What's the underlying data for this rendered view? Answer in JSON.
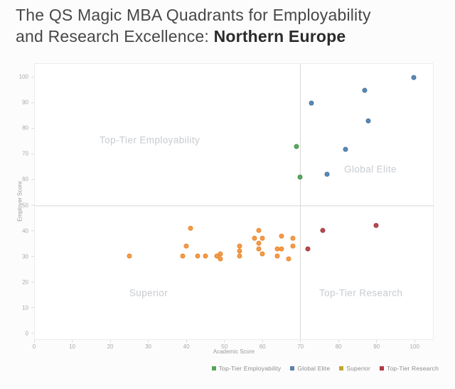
{
  "title": {
    "line1": "The QS Magic MBA Quadrants for Employability",
    "line2_prefix": "and Research Excellence: ",
    "line2_bold": "Northern Europe"
  },
  "chart_data": {
    "type": "scatter",
    "xlabel": "Academic Score",
    "ylabel": "Employer Score",
    "xlim": [
      0,
      105
    ],
    "ylim": [
      -2.5,
      105.3
    ],
    "xticks": [
      0,
      10,
      20,
      30,
      40,
      50,
      60,
      70,
      80,
      90,
      100
    ],
    "yticks": [
      0,
      10,
      20,
      30,
      40,
      50,
      60,
      70,
      80,
      90,
      100
    ],
    "grid": false,
    "quadrant_divider_x": 70,
    "quadrant_divider_y": 50,
    "quadrant_labels": [
      {
        "text": "Top-Tier Employability",
        "x": 30.3,
        "y": 75.5
      },
      {
        "text": "Global Elite",
        "x": 88.5,
        "y": 64
      },
      {
        "text": "Superior",
        "x": 30,
        "y": 15.5
      },
      {
        "text": "Top-Tier Research",
        "x": 86,
        "y": 15.5
      }
    ],
    "legend_position": "bottom-right",
    "series": [
      {
        "name": "Top-Tier Employability",
        "marker_color": "#5aa75d",
        "marker_border": "#4a9350",
        "legend_color": "#57a55b",
        "points": [
          [
            69,
            73
          ],
          [
            70,
            61
          ]
        ]
      },
      {
        "name": "Global Elite",
        "marker_color": "#5b89b4",
        "marker_border": "#47739e",
        "legend_color": "#5c83a8",
        "points": [
          [
            73,
            90
          ],
          [
            77,
            62
          ],
          [
            82,
            72
          ],
          [
            87,
            95
          ],
          [
            88,
            83
          ],
          [
            100,
            100
          ]
        ]
      },
      {
        "name": "Superior",
        "marker_color": "#f39b4a",
        "marker_border": "#e8882e",
        "legend_color": "#c2a72e",
        "points": [
          [
            25,
            30
          ],
          [
            39,
            30
          ],
          [
            40,
            34
          ],
          [
            41,
            41
          ],
          [
            43,
            30
          ],
          [
            45,
            30
          ],
          [
            48,
            30
          ],
          [
            49,
            29
          ],
          [
            49,
            31
          ],
          [
            54,
            30
          ],
          [
            54,
            32
          ],
          [
            54,
            34
          ],
          [
            58,
            37
          ],
          [
            59,
            33
          ],
          [
            59,
            35
          ],
          [
            59,
            40
          ],
          [
            60,
            31
          ],
          [
            60,
            37
          ],
          [
            64,
            30
          ],
          [
            64,
            33
          ],
          [
            65,
            33
          ],
          [
            65,
            38
          ],
          [
            67,
            29
          ],
          [
            68,
            34
          ],
          [
            68,
            37
          ]
        ]
      },
      {
        "name": "Top-Tier Research",
        "marker_color": "#b44c4f",
        "marker_border": "#a03a3f",
        "legend_color": "#b23944",
        "points": [
          [
            72,
            33
          ],
          [
            76,
            40
          ],
          [
            90,
            42
          ]
        ]
      }
    ]
  }
}
